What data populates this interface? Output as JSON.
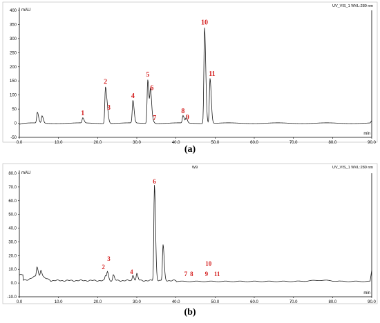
{
  "chart_data": [
    {
      "type": "line",
      "panel_label": "(a)",
      "header_text": "UV_VIS_1 WVL:280 nm",
      "ylabel": "mAU",
      "xlabel": "min",
      "xlim": [
        0,
        90
      ],
      "ylim": [
        -50,
        400
      ],
      "x_ticks": [
        "0.0",
        "10.0",
        "20.0",
        "30.0",
        "40.0",
        "50.0",
        "60.0",
        "70.0",
        "80.0",
        "90.0"
      ],
      "y_ticks": [
        "-50",
        "0",
        "50",
        "100",
        "150",
        "200",
        "250",
        "300",
        "350",
        "400"
      ],
      "peaks": [
        {
          "x": 4.6,
          "y": 38
        },
        {
          "x": 5.8,
          "y": 26
        },
        {
          "x": 16.2,
          "y": 18
        },
        {
          "x": 22.0,
          "y": 130
        },
        {
          "x": 22.5,
          "y": 33
        },
        {
          "x": 29.0,
          "y": 80
        },
        {
          "x": 32.8,
          "y": 155
        },
        {
          "x": 33.5,
          "y": 115
        },
        {
          "x": 34.2,
          "y": 6
        },
        {
          "x": 41.8,
          "y": 26
        },
        {
          "x": 42.6,
          "y": 18
        },
        {
          "x": 47.3,
          "y": 340
        },
        {
          "x": 48.7,
          "y": 160
        }
      ],
      "peak_labels": [
        {
          "text": "1",
          "x": 16.2,
          "y": 18
        },
        {
          "text": "2",
          "x": 22.0,
          "y": 130
        },
        {
          "text": "3",
          "x": 22.5,
          "y": 33
        },
        {
          "text": "4",
          "x": 29.0,
          "y": 80
        },
        {
          "text": "5",
          "x": 32.8,
          "y": 155
        },
        {
          "text": "6",
          "x": 33.5,
          "y": 115
        },
        {
          "text": "7",
          "x": 34.2,
          "y": 6
        },
        {
          "text": "8",
          "x": 41.8,
          "y": 26
        },
        {
          "text": "9",
          "x": 42.6,
          "y": 18
        },
        {
          "text": "10",
          "x": 47.3,
          "y": 340
        },
        {
          "text": "11",
          "x": 48.7,
          "y": 160
        }
      ]
    },
    {
      "type": "line",
      "panel_label": "(b)",
      "header_left": "W9",
      "header_text": "UV_VIS_1 WVL:280 nm",
      "ylabel": "mAU",
      "xlabel": "min",
      "xlim": [
        0,
        90
      ],
      "ylim": [
        -10,
        80
      ],
      "x_ticks": [
        "0.0",
        "10.0",
        "20.0",
        "30.0",
        "40.0",
        "50.0",
        "60.0",
        "70.0",
        "80.0",
        "90.0"
      ],
      "y_ticks": [
        "-10.0",
        "0.0",
        "10.0",
        "20.0",
        "30.0",
        "40.0",
        "50.0",
        "60.0",
        "70.0",
        "80.0"
      ],
      "peaks": [
        {
          "x": 4.5,
          "y": 7
        },
        {
          "x": 5.5,
          "y": 5
        },
        {
          "x": 22.0,
          "y": 3.5
        },
        {
          "x": 22.5,
          "y": 6
        },
        {
          "x": 24.0,
          "y": 4
        },
        {
          "x": 29.0,
          "y": 4
        },
        {
          "x": 30.0,
          "y": 5
        },
        {
          "x": 34.5,
          "y": 69.5
        },
        {
          "x": 36.7,
          "y": 26
        }
      ],
      "peak_labels": [
        {
          "text": "2",
          "x": 22.0,
          "y": 3.5
        },
        {
          "text": "3",
          "x": 22.5,
          "y": 6
        },
        {
          "text": "4",
          "x": 29.0,
          "y": 4
        },
        {
          "text": "6",
          "x": 34.5,
          "y": 69.5
        },
        {
          "text": "7",
          "x": 42.5,
          "y": 2
        },
        {
          "text": "8",
          "x": 44.0,
          "y": 2
        },
        {
          "text": "9",
          "x": 47.8,
          "y": 2
        },
        {
          "text": "10",
          "x": 48.3,
          "y": 4.5
        },
        {
          "text": "11",
          "x": 50.5,
          "y": 2
        }
      ]
    }
  ]
}
